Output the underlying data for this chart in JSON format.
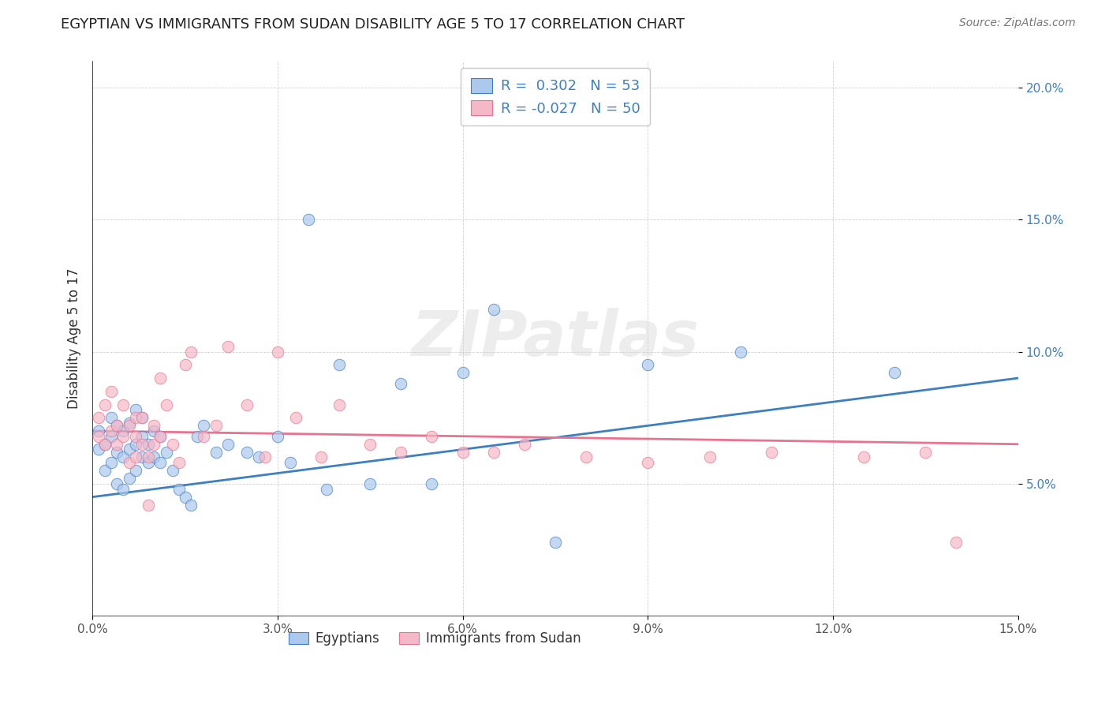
{
  "title": "EGYPTIAN VS IMMIGRANTS FROM SUDAN DISABILITY AGE 5 TO 17 CORRELATION CHART",
  "source": "Source: ZipAtlas.com",
  "xlabel": "",
  "ylabel": "Disability Age 5 to 17",
  "xlim": [
    0.0,
    0.15
  ],
  "ylim": [
    0.0,
    0.21
  ],
  "xticks": [
    0.0,
    0.03,
    0.06,
    0.09,
    0.12,
    0.15
  ],
  "yticks": [
    0.05,
    0.1,
    0.15,
    0.2
  ],
  "ytick_labels": [
    "5.0%",
    "10.0%",
    "15.0%",
    "20.0%"
  ],
  "xtick_labels": [
    "0.0%",
    "3.0%",
    "6.0%",
    "9.0%",
    "12.0%",
    "15.0%"
  ],
  "egyptian_color": "#adc8ed",
  "sudan_color": "#f5b8c8",
  "egyptian_line_color": "#3d7fc1",
  "sudan_line_color": "#e8728f",
  "legend_R_color": "#3d7fc1",
  "bg_color": "#ffffff",
  "watermark": "ZIPatlas",
  "legend_label_egyptian": "R =  0.302   N = 53",
  "legend_label_sudan": "R = -0.027   N = 50",
  "legend_bottom_egyptian": "Egyptians",
  "legend_bottom_sudan": "Immigrants from Sudan",
  "egyptian_R": 0.302,
  "egyptian_N": 53,
  "sudan_R": -0.027,
  "sudan_N": 50,
  "egyptian_x": [
    0.001,
    0.001,
    0.002,
    0.002,
    0.003,
    0.003,
    0.003,
    0.004,
    0.004,
    0.004,
    0.005,
    0.005,
    0.005,
    0.006,
    0.006,
    0.006,
    0.007,
    0.007,
    0.007,
    0.008,
    0.008,
    0.008,
    0.009,
    0.009,
    0.01,
    0.01,
    0.011,
    0.011,
    0.012,
    0.013,
    0.014,
    0.015,
    0.016,
    0.017,
    0.018,
    0.02,
    0.022,
    0.025,
    0.027,
    0.03,
    0.032,
    0.035,
    0.038,
    0.04,
    0.045,
    0.05,
    0.055,
    0.06,
    0.065,
    0.075,
    0.09,
    0.105,
    0.13
  ],
  "egyptian_y": [
    0.063,
    0.07,
    0.055,
    0.065,
    0.058,
    0.068,
    0.075,
    0.05,
    0.062,
    0.072,
    0.048,
    0.06,
    0.07,
    0.052,
    0.063,
    0.073,
    0.055,
    0.065,
    0.078,
    0.06,
    0.068,
    0.075,
    0.058,
    0.065,
    0.06,
    0.07,
    0.058,
    0.068,
    0.062,
    0.055,
    0.048,
    0.045,
    0.042,
    0.068,
    0.072,
    0.062,
    0.065,
    0.062,
    0.06,
    0.068,
    0.058,
    0.15,
    0.048,
    0.095,
    0.05,
    0.088,
    0.05,
    0.092,
    0.116,
    0.028,
    0.095,
    0.1,
    0.092
  ],
  "sudan_x": [
    0.001,
    0.001,
    0.002,
    0.002,
    0.003,
    0.003,
    0.004,
    0.004,
    0.005,
    0.005,
    0.006,
    0.006,
    0.007,
    0.007,
    0.007,
    0.008,
    0.008,
    0.009,
    0.009,
    0.01,
    0.01,
    0.011,
    0.011,
    0.012,
    0.013,
    0.014,
    0.015,
    0.016,
    0.018,
    0.02,
    0.022,
    0.025,
    0.028,
    0.03,
    0.033,
    0.037,
    0.04,
    0.045,
    0.05,
    0.055,
    0.06,
    0.065,
    0.07,
    0.08,
    0.09,
    0.1,
    0.11,
    0.125,
    0.135,
    0.14
  ],
  "sudan_y": [
    0.068,
    0.075,
    0.065,
    0.08,
    0.07,
    0.085,
    0.065,
    0.072,
    0.068,
    0.08,
    0.058,
    0.072,
    0.06,
    0.068,
    0.075,
    0.065,
    0.075,
    0.06,
    0.042,
    0.065,
    0.072,
    0.068,
    0.09,
    0.08,
    0.065,
    0.058,
    0.095,
    0.1,
    0.068,
    0.072,
    0.102,
    0.08,
    0.06,
    0.1,
    0.075,
    0.06,
    0.08,
    0.065,
    0.062,
    0.068,
    0.062,
    0.062,
    0.065,
    0.06,
    0.058,
    0.06,
    0.062,
    0.06,
    0.062,
    0.028
  ]
}
